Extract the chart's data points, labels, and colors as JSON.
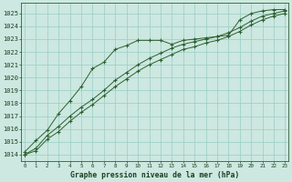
{
  "title": "Graphe pression niveau de la mer (hPa)",
  "x_values": [
    0,
    1,
    2,
    3,
    4,
    5,
    6,
    7,
    8,
    9,
    10,
    11,
    12,
    13,
    14,
    15,
    16,
    17,
    18,
    19,
    20,
    21,
    22,
    23
  ],
  "line_var": [
    1014.2,
    1015.1,
    1015.9,
    1017.2,
    1018.2,
    1019.3,
    1020.7,
    1021.2,
    1022.2,
    1022.5,
    1022.9,
    1022.9,
    1022.9,
    1022.6,
    1022.9,
    1023.0,
    1023.1,
    1023.2,
    1023.3,
    1024.5,
    1025.0,
    1025.2,
    1025.3,
    1025.3
  ],
  "line_mid": [
    1014.0,
    1014.5,
    1015.5,
    1016.2,
    1017.0,
    1017.7,
    1018.3,
    1019.0,
    1019.8,
    1020.4,
    1021.0,
    1021.5,
    1021.9,
    1022.3,
    1022.6,
    1022.8,
    1023.0,
    1023.2,
    1023.5,
    1023.9,
    1024.4,
    1024.8,
    1025.0,
    1025.2
  ],
  "line_low": [
    1014.0,
    1014.3,
    1015.2,
    1015.8,
    1016.6,
    1017.3,
    1017.9,
    1018.6,
    1019.3,
    1019.9,
    1020.5,
    1021.0,
    1021.4,
    1021.8,
    1022.2,
    1022.4,
    1022.7,
    1022.9,
    1023.2,
    1023.6,
    1024.1,
    1024.5,
    1024.8,
    1025.0
  ],
  "bg_color": "#cce8e0",
  "grid_color": "#99ccc4",
  "line_color": "#2d6030",
  "text_color": "#1a4020",
  "ylim": [
    1013.5,
    1025.8
  ],
  "yticks": [
    1014,
    1015,
    1016,
    1017,
    1018,
    1019,
    1020,
    1021,
    1022,
    1023,
    1024,
    1025
  ],
  "xlim": [
    -0.3,
    23.3
  ],
  "xticks": [
    0,
    1,
    2,
    3,
    4,
    5,
    6,
    7,
    8,
    9,
    10,
    11,
    12,
    13,
    14,
    15,
    16,
    17,
    18,
    19,
    20,
    21,
    22,
    23
  ]
}
